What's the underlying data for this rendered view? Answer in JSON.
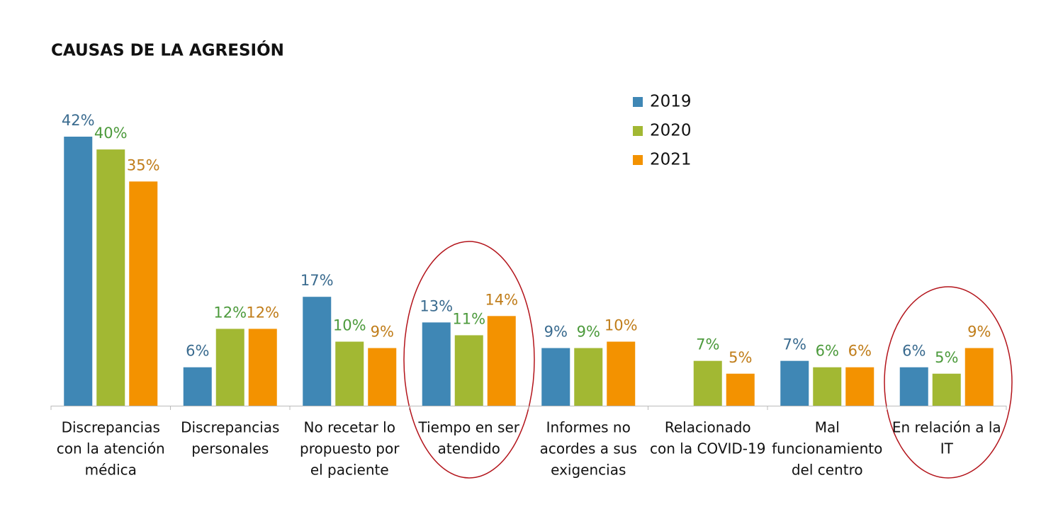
{
  "chart_data": {
    "type": "bar",
    "title": "CAUSAS DE LA AGRESIÓN",
    "categories": [
      [
        "Discrepancias",
        "con la atención",
        "médica"
      ],
      [
        "Discrepancias",
        "personales"
      ],
      [
        "No recetar lo",
        "propuesto por",
        "el paciente"
      ],
      [
        "Tiempo en ser",
        "atendido"
      ],
      [
        "Informes no",
        "acordes a sus",
        "exigencias"
      ],
      [
        "Relacionado",
        "con la COVID-19"
      ],
      [
        "Mal",
        "funcionamiento",
        "del centro"
      ],
      [
        "En relación a la",
        "IT"
      ]
    ],
    "series": [
      {
        "name": "2019",
        "color": "#3f87b5",
        "label_color": "#3a6b8f",
        "values": [
          42,
          6,
          17,
          13,
          9,
          null,
          7,
          6
        ],
        "value_labels": [
          "42%",
          "6%",
          "17%",
          "13%",
          "9%",
          null,
          "7%",
          "6%"
        ]
      },
      {
        "name": "2020",
        "color": "#a2b833",
        "label_color": "#4c9a3c",
        "values": [
          40,
          12,
          10,
          11,
          9,
          7,
          6,
          5
        ],
        "value_labels": [
          "40%",
          "12%",
          "10%",
          "11%",
          "9%",
          "7%",
          "6%",
          "5%"
        ]
      },
      {
        "name": "2021",
        "color": "#f39200",
        "label_color": "#c07d1a",
        "values": [
          35,
          12,
          9,
          14,
          10,
          5,
          6,
          9
        ],
        "value_labels": [
          "35%",
          "12%",
          "9%",
          "14%",
          "10%",
          "5%",
          "6%",
          "9%"
        ]
      }
    ]
  }
}
